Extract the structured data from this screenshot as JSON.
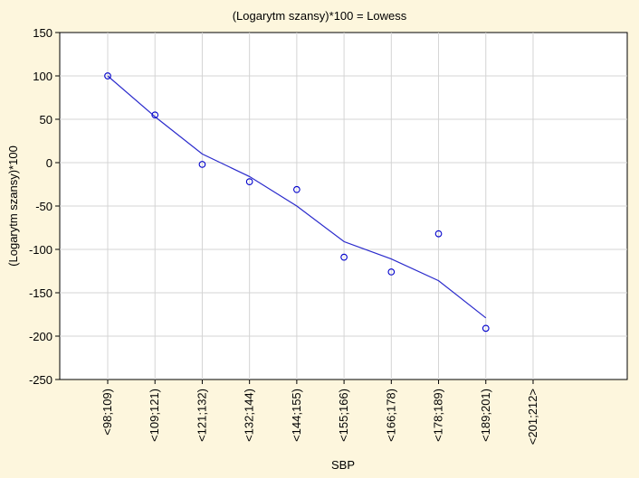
{
  "chart_data": {
    "type": "scatter",
    "title": "(Logarytm szansy)*100 = Lowess",
    "xlabel": "SBP",
    "ylabel": "(Logarytm szansy)*100",
    "ylim": [
      -250,
      150
    ],
    "yticks": [
      150,
      100,
      50,
      0,
      -50,
      -100,
      -150,
      -200,
      -250
    ],
    "categories": [
      "<98;109)",
      "<109;121)",
      "<121;132)",
      "<132;144)",
      "<144;155)",
      "<155;166)",
      "<166;178)",
      "<178;189)",
      "<189;201)",
      "<201;212>"
    ],
    "grid": true,
    "series": [
      {
        "kind": "points",
        "marker": "circle",
        "color": "#0000cc",
        "values": [
          100,
          55,
          -2,
          -22,
          -31,
          -109,
          -126,
          -82,
          -191,
          null
        ]
      },
      {
        "kind": "line",
        "color": "#2a2acc",
        "values": [
          100,
          53,
          10,
          -16,
          -50,
          -91,
          -111,
          -136,
          -179,
          null
        ]
      }
    ]
  }
}
